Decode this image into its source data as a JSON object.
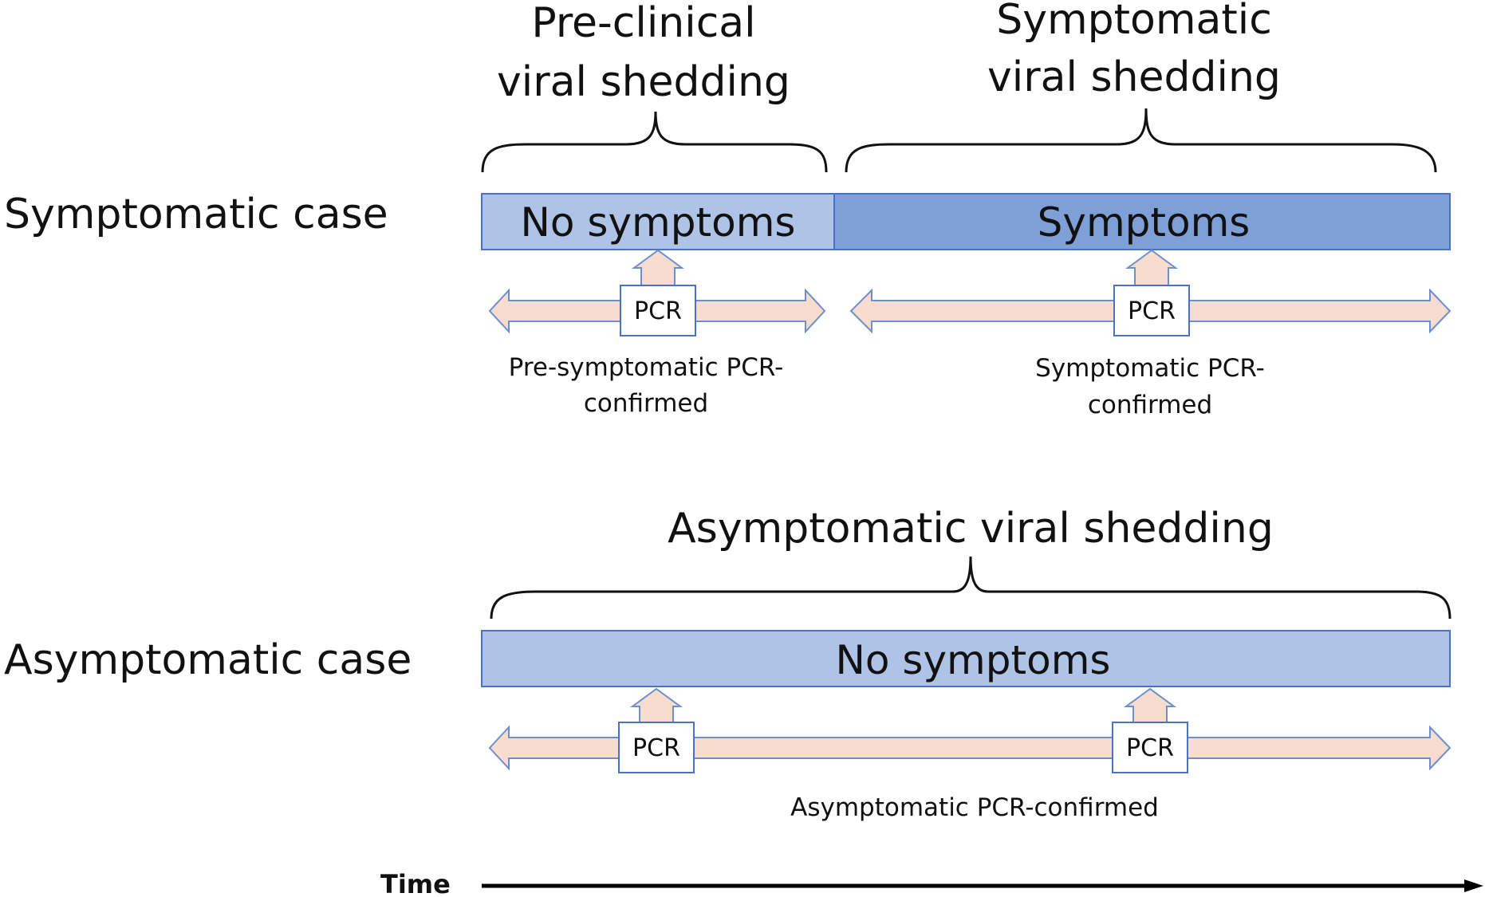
{
  "rows": {
    "symptomatic": "Symptomatic case",
    "asymptomatic": "Asymptomatic case"
  },
  "braces": {
    "preclinical": [
      "Pre-clinical",
      "viral shedding"
    ],
    "symptomatic": [
      "Symptomatic",
      "viral shedding"
    ],
    "asymptomatic": [
      "Asymptomatic viral shedding"
    ]
  },
  "bars": {
    "symptomatic_left": "No symptoms",
    "symptomatic_right": "Symptoms",
    "asymptomatic": "No symptoms"
  },
  "pcr_label": "PCR",
  "captions": {
    "presymptomatic": [
      "Pre-symptomatic PCR-",
      "confirmed"
    ],
    "symptomatic": [
      "Symptomatic PCR-",
      "confirmed"
    ],
    "asymptomatic": [
      "Asymptomatic PCR-confirmed"
    ]
  },
  "time_label": "Time",
  "colors": {
    "bar_light": "#AFC3E6",
    "bar_dark": "#7F9FD7",
    "arrow_fill": "#F8DCCD",
    "outline_blue": "#4A72C4"
  }
}
